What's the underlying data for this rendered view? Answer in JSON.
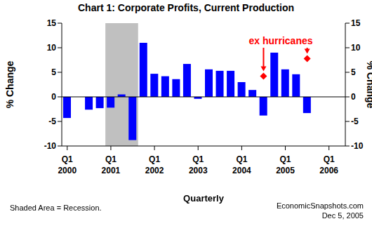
{
  "chart_data": {
    "type": "bar",
    "title": "Chart 1: Corporate Profits, Current Production",
    "x_label": "Quarterly",
    "y_label": "% Change",
    "y2_label": "% Change",
    "categories": [
      "Q1 2000",
      null,
      null,
      null,
      "Q1 2001",
      null,
      null,
      null,
      "Q1 2002",
      null,
      null,
      null,
      "Q1 2003",
      null,
      null,
      null,
      "Q1 2004",
      null,
      null,
      null,
      "Q1 2005",
      null,
      null,
      null,
      "Q1 2006",
      null
    ],
    "values": [
      -4.3,
      null,
      -2.6,
      -2.3,
      -2.2,
      0.5,
      -8.8,
      11,
      4.7,
      4.2,
      3.6,
      6.7,
      -0.4,
      5.6,
      5.3,
      5.3,
      3.0,
      1.4,
      -3.8,
      9.0,
      5.6,
      4.6,
      -3.3,
      null,
      null,
      null
    ],
    "color": "#0000ff",
    "ylim": [
      -10,
      15
    ],
    "yticks": [
      -10,
      -5,
      0,
      5,
      10,
      15
    ],
    "y2lim": [
      -10,
      15
    ],
    "y2ticks": [
      -10,
      -5,
      0,
      5,
      10,
      15
    ],
    "grid": false,
    "shaded": {
      "from": 4,
      "to": 6,
      "label": "Shaded Area = Recession.",
      "color": "#c0c0c0"
    },
    "annotation": {
      "text": "ex hurricanes",
      "color": "#ff0000",
      "marker": "diamond",
      "axis": "y2",
      "values": [
        null,
        null,
        null,
        null,
        null,
        null,
        null,
        null,
        null,
        null,
        null,
        null,
        null,
        null,
        null,
        null,
        null,
        null,
        4.2,
        null,
        null,
        null,
        7.8,
        null,
        null,
        null
      ]
    },
    "source": "EconomicSnapshots.com",
    "date": "Dec 5, 2005"
  }
}
